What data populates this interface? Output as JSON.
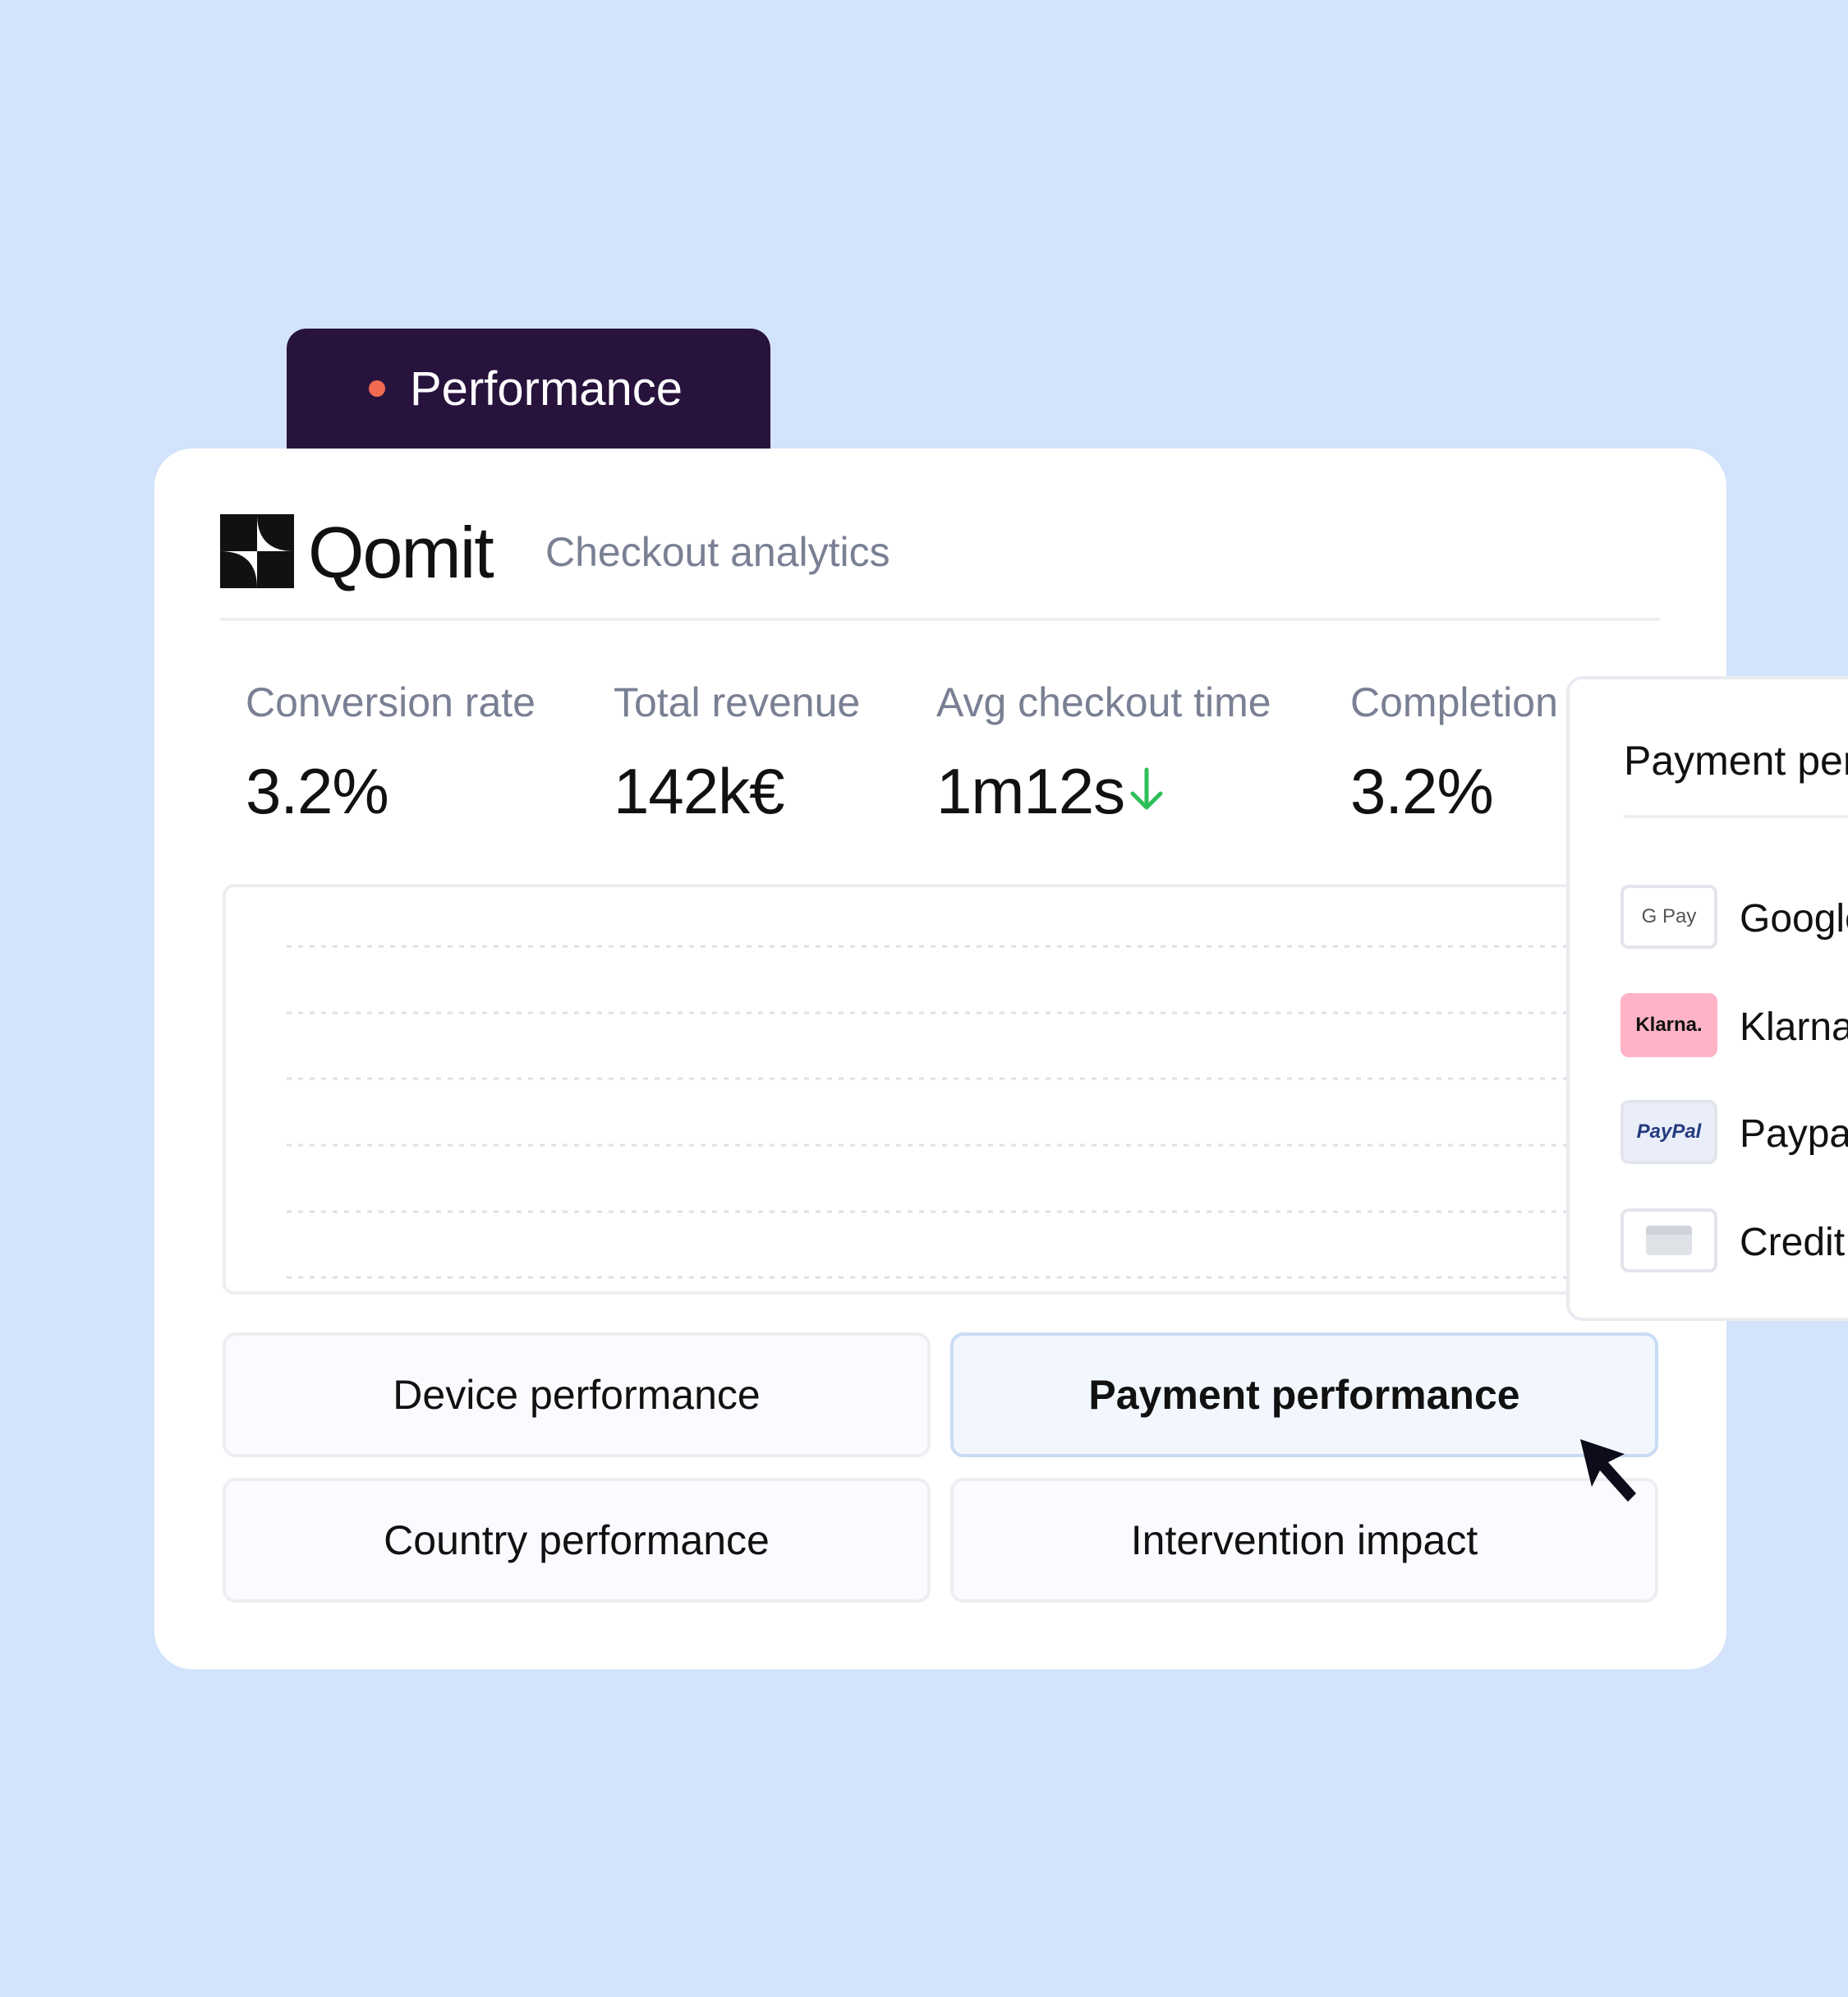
{
  "tab": {
    "label": "Performance"
  },
  "header": {
    "brand": "Qomit",
    "subtitle": "Checkout analytics"
  },
  "metrics": [
    {
      "label": "Conversion rate",
      "value": "3.2%"
    },
    {
      "label": "Total revenue",
      "value": "142k€"
    },
    {
      "label": "Avg checkout time",
      "value": "1m12s"
    },
    {
      "label": "Completion",
      "value": "3.2%"
    }
  ],
  "buttons": [
    "Device performance",
    "Payment performance",
    "Country performance",
    "Intervention impact"
  ],
  "side_panel": {
    "title": "Payment performance",
    "methods": [
      {
        "icon": "G Pay",
        "name": "Google Pay"
      },
      {
        "icon": "Klarna.",
        "name": "Klarna"
      },
      {
        "icon": "PayPal",
        "name": "Paypal"
      },
      {
        "icon": "",
        "name": "Credit card"
      }
    ]
  }
}
